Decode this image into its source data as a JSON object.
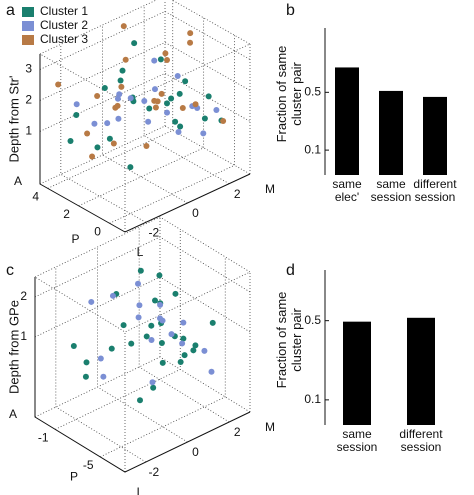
{
  "chart_data": [
    {
      "type": "scatter3d",
      "panel": "a",
      "zlabel": "Depth from Str'",
      "ap_labels": [
        "P",
        "A"
      ],
      "lm_labels": [
        "L",
        "M"
      ],
      "aplim": [
        -1,
        4.5
      ],
      "lmlim": [
        -3,
        3
      ],
      "zlim": [
        -0.7,
        3.5
      ],
      "apticks": [
        4,
        2,
        0
      ],
      "lmticks": [
        -2,
        0,
        2
      ],
      "zticks": [
        1,
        2,
        3
      ],
      "series": [
        {
          "name": "Cluster 1",
          "color": "#1a7f6e",
          "x": [
            3.5,
            3,
            2,
            1,
            0.5,
            0,
            -0.5,
            2.5,
            1.5,
            3.8,
            0.8,
            2.2,
            1.2,
            -0.2,
            3.2,
            1.8,
            0.3,
            2.8,
            1,
            3.6,
            2.4,
            0.6
          ],
          "y": [
            -2,
            -1,
            -1.5,
            0.5,
            1,
            -2,
            2,
            0,
            1.5,
            1,
            -0.5,
            2,
            -1,
            0,
            -2.5,
            0.8,
            1.8,
            -0.3,
            2.5,
            0.2,
            -1.8,
            0.4
          ],
          "z": [
            1.5,
            2.2,
            1,
            1.8,
            2.5,
            0.8,
            1.2,
            1.6,
            0.6,
            2.8,
            2,
            1.3,
            2.4,
            1.7,
            0.9,
            2.9,
            1.1,
            2.6,
            1.4,
            1.9,
            0.7,
            2.1
          ]
        },
        {
          "name": "Cluster 2",
          "color": "#7b8fd4",
          "x": [
            3,
            2,
            1,
            0,
            2.5,
            1.5,
            0.5,
            3.5,
            2.8,
            1.2,
            0.2,
            3.8,
            2.2,
            1.8,
            0.8,
            -0.5,
            3.2,
            2.6
          ],
          "y": [
            -1.5,
            -0.5,
            0.5,
            1.5,
            1,
            -2,
            2.5,
            0,
            -2.5,
            1.2,
            -1,
            2,
            0.3,
            -1.2,
            1.8,
            0.6,
            -0.2,
            2.2
          ],
          "z": [
            1.2,
            2,
            1.5,
            0.8,
            2.6,
            1.8,
            1.1,
            1.4,
            2.2,
            0.6,
            1.9,
            1,
            1.6,
            2.4,
            1.3,
            2.1,
            0.9,
            1.7
          ]
        },
        {
          "name": "Cluster 3",
          "color": "#b87a45",
          "x": [
            4,
            3.5,
            3,
            2.5,
            2,
            1.5,
            1,
            0.5,
            0,
            3.8,
            2.8,
            1.8,
            0.8,
            3.2,
            2.2,
            1.2,
            0.2,
            -0.5,
            4.2,
            2.6,
            1.4,
            3.4
          ],
          "y": [
            -2.5,
            -1,
            0,
            1,
            2,
            -1.5,
            0.5,
            1.5,
            -0.5,
            2.5,
            -2,
            2.2,
            -2.2,
            1.6,
            -0.8,
            0.2,
            2.6,
            -1.6,
            0.8,
            2.8,
            -2.8,
            -0.2
          ],
          "z": [
            2.5,
            1.8,
            2.8,
            1.3,
            0.9,
            2.2,
            3.2,
            1.6,
            2.7,
            2,
            1.1,
            3,
            1.4,
            0.7,
            2.4,
            1.9,
            0.8,
            1.5,
            3.3,
            2.9,
            1,
            1.2
          ]
        }
      ]
    },
    {
      "type": "bar",
      "panel": "b",
      "ylabel": "Fraction of same cluster pair",
      "log": true,
      "color": "#000000",
      "categories": [
        "same elec'",
        "same session",
        "different session"
      ],
      "values": [
        1.0,
        0.52,
        0.44
      ],
      "ylim": [
        0.05,
        3
      ],
      "yticks": [
        0.1,
        0.5
      ]
    },
    {
      "type": "scatter3d",
      "panel": "c",
      "zlabel": "Depth from GPe",
      "ap_labels": [
        "P",
        "A"
      ],
      "lm_labels": [
        "L",
        "M"
      ],
      "aplim": [
        -7.2,
        0.8
      ],
      "lmlim": [
        -3,
        3
      ],
      "zlim": [
        -1,
        2.5
      ],
      "apticks": [
        -1,
        -5
      ],
      "lmticks": [
        -2,
        0,
        2
      ],
      "zticks": [
        1,
        2
      ],
      "series": [
        {
          "color": "#1a7f6e",
          "x": [
            -1,
            -2,
            -3,
            -4,
            -5,
            -6,
            -1.5,
            -2.5,
            -3.5,
            -4.5,
            -5.5,
            -0.5,
            -1,
            -2,
            -3,
            -4,
            -5,
            -2.2,
            -3.2,
            -4.2,
            -1.2,
            -0.8,
            -2.8,
            -3.8,
            -6.2,
            -5.2
          ],
          "y": [
            2,
            1.5,
            1,
            0.5,
            0,
            -1,
            2.5,
            0.8,
            1.8,
            -0.5,
            1.2,
            0.2,
            -1.5,
            2.2,
            -0.8,
            1.4,
            2.4,
            0,
            0.6,
            2,
            1,
            -2,
            -2.5,
            -1.8,
            0.4,
            -1.2
          ],
          "z": [
            1.6,
            1.2,
            1,
            0.8,
            0.6,
            0.4,
            1.1,
            0.9,
            0.5,
            1.3,
            0.7,
            1.5,
            0.3,
            0.2,
            1.4,
            0.1,
            1,
            0.6,
            1.7,
            0.4,
            2,
            0.8,
            0.5,
            1.2,
            0.9,
            0
          ]
        },
        {
          "color": "#7b8fd4",
          "x": [
            -1,
            -2,
            -3,
            -4,
            -5,
            -1.5,
            -2.5,
            -3.5,
            -4.5,
            -0.5,
            -2.2,
            -3.2,
            -4.2,
            -5.2,
            -6,
            -1.8,
            -2.8
          ],
          "y": [
            1,
            0.5,
            1.5,
            0,
            2,
            -0.5,
            -1.5,
            0.8,
            1.2,
            -1,
            2.5,
            -2,
            0.3,
            -0.6,
            1.8,
            1.6,
            0
          ],
          "z": [
            0.8,
            1.4,
            0.6,
            1,
            0.4,
            1.8,
            0.2,
            1.2,
            0.7,
            1.6,
            0.5,
            0.9,
            1.5,
            0.3,
            0.1,
            1.1,
            2.2
          ]
        }
      ]
    },
    {
      "type": "bar",
      "panel": "d",
      "ylabel": "Fraction of same cluster pair",
      "log": true,
      "color": "#000000",
      "categories": [
        "same session",
        "different session"
      ],
      "values": [
        0.49,
        0.53
      ],
      "ylim": [
        0.06,
        1.4
      ],
      "yticks": [
        0.1,
        0.5
      ]
    }
  ]
}
